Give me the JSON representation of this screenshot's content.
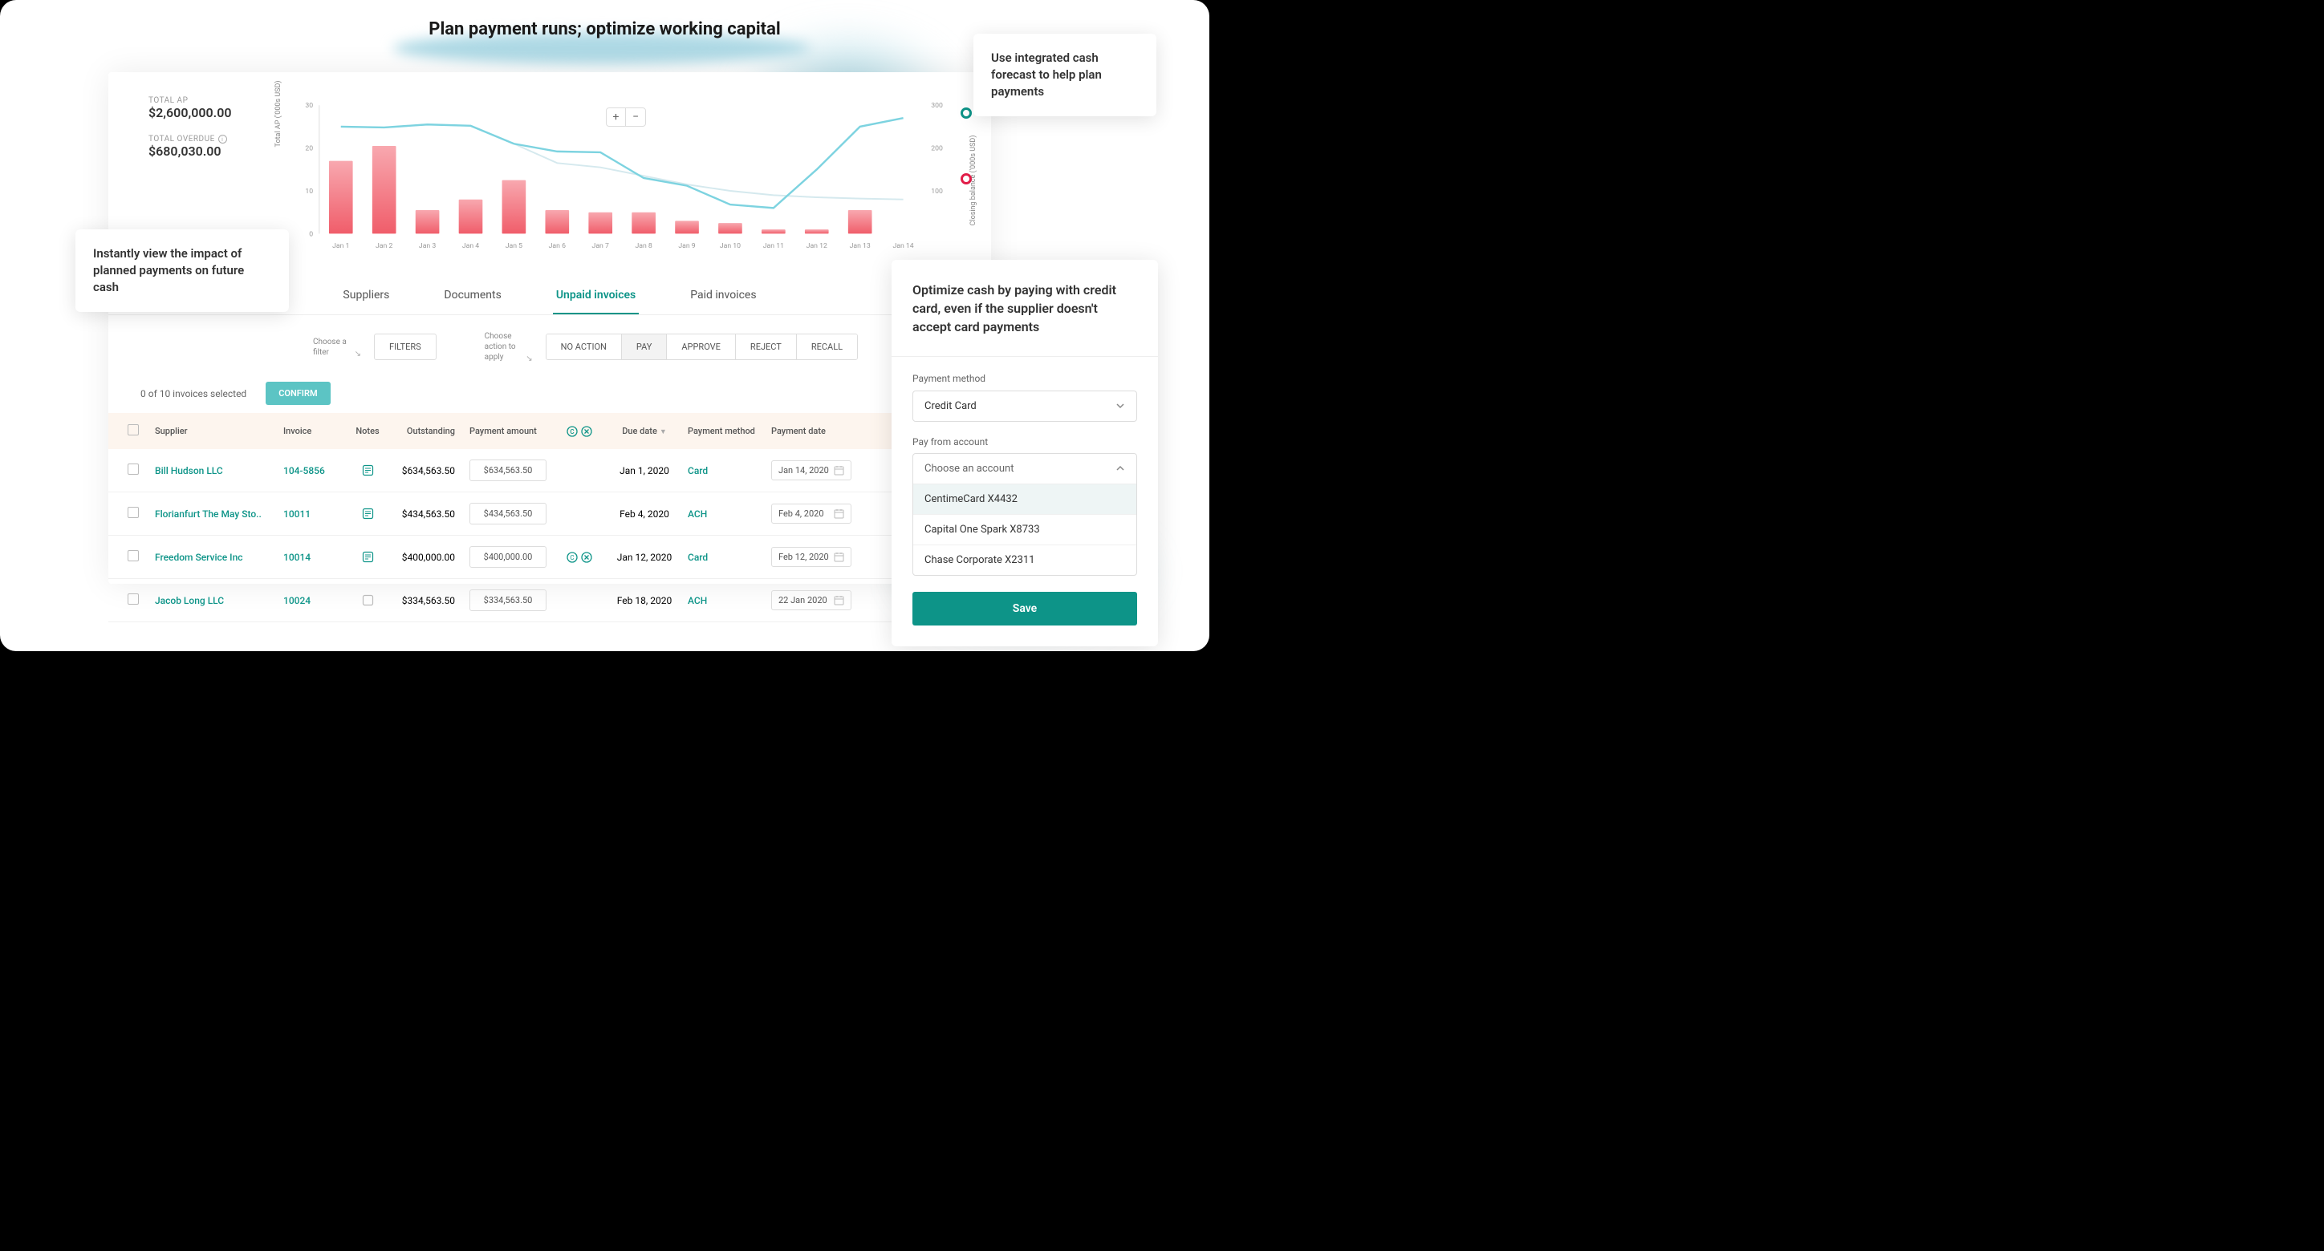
{
  "title": "Plan payment runs; optimize working capital",
  "callouts": {
    "impact": "Instantly view the impact of planned payments on future cash",
    "forecast": "Use integrated cash forecast to help plan payments"
  },
  "totals": {
    "ap_label": "TOTAL AP",
    "ap_value": "$2,600,000.00",
    "overdue_label": "TOTAL OVERDUE",
    "overdue_value": "$680,030.00"
  },
  "chart": {
    "y_left_label": "Total AP ('000s USD)",
    "y_right_label": "Closing balance ('000s USD)",
    "y_left_ticks": [
      "0",
      "10",
      "20",
      "30"
    ],
    "y_right_ticks": [
      "100",
      "200",
      "300"
    ],
    "y_left_max": 30,
    "y_right_max": 300,
    "x_labels": [
      "Jan 1",
      "Jan 2",
      "Jan 3",
      "Jan 4",
      "Jan 5",
      "Jan 6",
      "Jan 7",
      "Jan 8",
      "Jan 9",
      "Jan 10",
      "Jan 11",
      "Jan 12",
      "Jan 13",
      "Jan 14"
    ],
    "bars": [
      17,
      20.5,
      5.5,
      8,
      12.5,
      5.5,
      5,
      5,
      3,
      2.5,
      1,
      1,
      5.5,
      0
    ],
    "bar_gradient_top": "#f8a8af",
    "bar_gradient_bottom": "#f05d6a",
    "line1": [
      250,
      248,
      255,
      252,
      210,
      192,
      190,
      130,
      112,
      68,
      60,
      150,
      250,
      270
    ],
    "line1_color": "#7dd3e0",
    "line2": [
      250,
      248,
      255,
      252,
      210,
      165,
      155,
      135,
      115,
      100,
      90,
      85,
      82,
      80
    ],
    "line2_color": "#d5e9ee",
    "marker_closing_color": "#0d9488",
    "marker_target_color": "#e11d48"
  },
  "tabs": {
    "suppliers": "Suppliers",
    "documents": "Documents",
    "unpaid": "Unpaid invoices",
    "paid": "Paid invoices"
  },
  "filters": {
    "filter_hint": "Choose a filter",
    "filters_btn": "FILTERS",
    "action_hint": "Choose action to apply",
    "no_action": "NO ACTION",
    "pay": "PAY",
    "approve": "APPROVE",
    "reject": "REJECT",
    "recall": "RECALL"
  },
  "selection": {
    "text": "0 of 10 invoices selected",
    "confirm": "CONFIRM"
  },
  "columns": {
    "supplier": "Supplier",
    "invoice": "Invoice",
    "notes": "Notes",
    "outstanding": "Outstanding",
    "payamt": "Payment amount",
    "due": "Due date",
    "method": "Payment method",
    "paydate": "Payment date"
  },
  "rows": [
    {
      "supplier": "Bill Hudson LLC",
      "invoice": "104-5856",
      "outstanding": "$634,563.50",
      "payamt": "$634,563.50",
      "due": "Jan 1, 2020",
      "method": "Card",
      "paydate": "Jan 14, 2020",
      "icons": false
    },
    {
      "supplier": "Florianfurt The May Sto..",
      "invoice": "10011",
      "outstanding": "$434,563.50",
      "payamt": "$434,563.50",
      "due": "Feb 4, 2020",
      "method": "ACH",
      "paydate": "Feb 4, 2020",
      "icons": false
    },
    {
      "supplier": "Freedom Service Inc",
      "invoice": "10014",
      "outstanding": "$400,000.00",
      "payamt": "$400,000.00",
      "due": "Jan 12, 2020",
      "method": "Card",
      "paydate": "Feb 12, 2020",
      "icons": true
    },
    {
      "supplier": "Jacob Long LLC",
      "invoice": "10024",
      "outstanding": "$334,563.50",
      "payamt": "$334,563.50",
      "due": "Feb 18, 2020",
      "method": "ACH",
      "paydate": "22 Jan 2020",
      "icons": false
    }
  ],
  "panel": {
    "title": "Optimize cash by paying with credit card, even if the supplier doesn't accept card payments",
    "method_label": "Payment method",
    "method_value": "Credit Card",
    "account_label": "Pay from account",
    "account_placeholder": "Choose an account",
    "accounts": [
      "CentimeCard X4432",
      "Capital One Spark X8733",
      "Chase Corporate X2311"
    ],
    "save": "Save"
  }
}
